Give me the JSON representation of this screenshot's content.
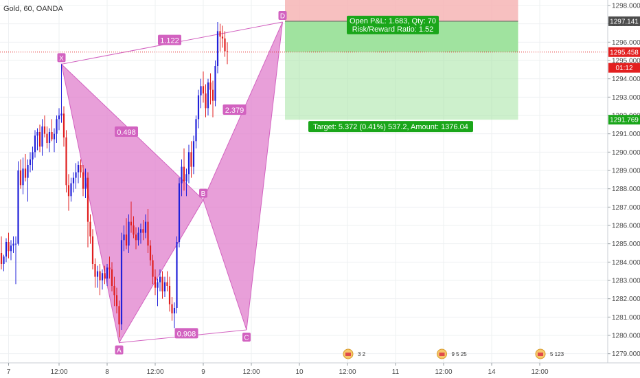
{
  "header": {
    "title": "Gold, 60, OANDA"
  },
  "colors": {
    "up": "#2121d9",
    "down": "#e01e1e",
    "pattern": "#d262c0",
    "pattern_fill": "#e07fcc",
    "target_zone": "#9be29a",
    "stop_zone": "#f5b0b0",
    "tag_green": "#1aa61a",
    "tag_dark": "#4d4d4d",
    "tag_red": "#e32020"
  },
  "chart_data": {
    "type": "candlestick",
    "title": "Gold, 60, OANDA",
    "ylim": [
      1278.5,
      1298.3
    ],
    "y_ticks": [
      1279.0,
      1280.0,
      1281.0,
      1282.0,
      1283.0,
      1284.0,
      1285.0,
      1286.0,
      1287.0,
      1288.0,
      1289.0,
      1290.0,
      1291.0,
      1292.0,
      1293.0,
      1294.0,
      1295.0,
      1296.0,
      1297.0,
      1298.0
    ],
    "y_tick_labels": [
      "1279.000",
      "1280.000",
      "1281.000",
      "1282.000",
      "1283.000",
      "1284.000",
      "1285.000",
      "1286.000",
      "1287.000",
      "1288.000",
      "1289.000",
      "1290.000",
      "1291.000",
      "1292.000",
      "1293.000",
      "1294.000",
      "1295.000",
      "1296.000",
      "1297.000",
      "1298.000"
    ],
    "x_ticks": [
      {
        "bar": 3,
        "label": "7"
      },
      {
        "bar": 24,
        "label": "12:00"
      },
      {
        "bar": 44,
        "label": "8"
      },
      {
        "bar": 64,
        "label": "12:00"
      },
      {
        "bar": 84,
        "label": "9"
      },
      {
        "bar": 104,
        "label": "12:00"
      },
      {
        "bar": 124,
        "label": "10"
      },
      {
        "bar": 144,
        "label": "12:00"
      },
      {
        "bar": 164,
        "label": "11"
      },
      {
        "bar": 184,
        "label": "12:00"
      },
      {
        "bar": 204,
        "label": "14"
      },
      {
        "bar": 224,
        "label": "12:00"
      }
    ],
    "candles": [
      [
        1284.5,
        1285.4,
        1283.6,
        1283.9
      ],
      [
        1283.9,
        1284.4,
        1283.5,
        1284.3
      ],
      [
        1284.3,
        1285.3,
        1284.0,
        1285.1
      ],
      [
        1285.1,
        1285.6,
        1284.2,
        1284.6
      ],
      [
        1284.6,
        1285.2,
        1284.1,
        1284.9
      ],
      [
        1284.9,
        1285.4,
        1284.5,
        1285.0
      ],
      [
        1285.0,
        1285.4,
        1282.8,
        1285.0
      ],
      [
        1285.0,
        1289.5,
        1284.9,
        1289.0
      ],
      [
        1289.0,
        1289.6,
        1288.0,
        1288.2
      ],
      [
        1288.2,
        1289.7,
        1287.7,
        1289.1
      ],
      [
        1289.1,
        1289.9,
        1288.4,
        1288.6
      ],
      [
        1288.6,
        1289.6,
        1287.3,
        1289.3
      ],
      [
        1289.3,
        1290.0,
        1288.9,
        1289.6
      ],
      [
        1289.6,
        1290.3,
        1289.0,
        1290.0
      ],
      [
        1290.0,
        1291.2,
        1289.7,
        1290.9
      ],
      [
        1290.9,
        1291.3,
        1290.1,
        1291.1
      ],
      [
        1291.1,
        1291.5,
        1290.0,
        1290.3
      ],
      [
        1290.3,
        1291.8,
        1289.8,
        1291.4
      ],
      [
        1291.4,
        1292.0,
        1290.8,
        1291.0
      ],
      [
        1291.0,
        1291.4,
        1290.2,
        1290.5
      ],
      [
        1290.5,
        1291.3,
        1290.0,
        1291.1
      ],
      [
        1291.1,
        1291.8,
        1290.6,
        1290.7
      ],
      [
        1290.7,
        1291.3,
        1290.0,
        1291.0
      ],
      [
        1291.0,
        1292.0,
        1290.5,
        1291.8
      ],
      [
        1291.8,
        1292.4,
        1291.2,
        1292.0
      ],
      [
        1292.0,
        1294.8,
        1291.6,
        1292.1
      ],
      [
        1292.1,
        1292.5,
        1290.3,
        1290.8
      ],
      [
        1290.8,
        1291.2,
        1287.8,
        1288.2
      ],
      [
        1288.2,
        1288.8,
        1286.8,
        1287.6
      ],
      [
        1287.6,
        1288.6,
        1287.3,
        1288.3
      ],
      [
        1288.3,
        1288.9,
        1287.8,
        1288.6
      ],
      [
        1288.6,
        1289.4,
        1288.0,
        1288.9
      ],
      [
        1288.9,
        1289.5,
        1288.3,
        1289.3
      ],
      [
        1289.3,
        1289.6,
        1288.6,
        1288.9
      ],
      [
        1288.9,
        1289.3,
        1287.6,
        1288.0
      ],
      [
        1288.0,
        1289.1,
        1287.5,
        1288.6
      ],
      [
        1288.6,
        1288.9,
        1284.8,
        1286.2
      ],
      [
        1286.2,
        1286.6,
        1285.0,
        1285.4
      ],
      [
        1285.4,
        1285.8,
        1283.6,
        1283.9
      ],
      [
        1283.9,
        1284.2,
        1282.6,
        1283.2
      ],
      [
        1283.2,
        1283.8,
        1282.6,
        1283.5
      ],
      [
        1283.5,
        1283.9,
        1282.2,
        1283.0
      ],
      [
        1283.0,
        1283.6,
        1282.5,
        1283.4
      ],
      [
        1283.4,
        1283.8,
        1282.8,
        1283.1
      ],
      [
        1283.1,
        1283.9,
        1282.7,
        1283.7
      ],
      [
        1283.7,
        1284.3,
        1283.1,
        1283.6
      ],
      [
        1283.6,
        1284.0,
        1282.4,
        1282.7
      ],
      [
        1282.7,
        1283.2,
        1281.6,
        1282.2
      ],
      [
        1282.2,
        1282.6,
        1281.2,
        1281.6
      ],
      [
        1281.6,
        1281.9,
        1279.9,
        1280.6
      ],
      [
        1280.6,
        1285.6,
        1280.3,
        1285.2
      ],
      [
        1285.2,
        1286.0,
        1284.6,
        1285.5
      ],
      [
        1285.5,
        1286.4,
        1284.7,
        1284.9
      ],
      [
        1284.9,
        1286.6,
        1284.5,
        1286.2
      ],
      [
        1286.2,
        1287.3,
        1285.6,
        1286.0
      ],
      [
        1286.0,
        1286.5,
        1285.3,
        1285.5
      ],
      [
        1285.5,
        1285.9,
        1284.7,
        1285.2
      ],
      [
        1285.2,
        1285.9,
        1284.9,
        1285.6
      ],
      [
        1285.6,
        1286.1,
        1285.0,
        1285.8
      ],
      [
        1285.8,
        1286.3,
        1285.2,
        1285.6
      ],
      [
        1285.6,
        1286.6,
        1285.3,
        1286.2
      ],
      [
        1286.2,
        1286.9,
        1284.5,
        1284.9
      ],
      [
        1284.9,
        1285.2,
        1283.8,
        1284.1
      ],
      [
        1284.1,
        1284.4,
        1282.8,
        1283.2
      ],
      [
        1283.2,
        1283.6,
        1282.2,
        1282.6
      ],
      [
        1282.6,
        1283.1,
        1281.6,
        1282.9
      ],
      [
        1282.9,
        1283.6,
        1282.4,
        1283.2
      ],
      [
        1283.2,
        1283.5,
        1282.0,
        1282.4
      ],
      [
        1282.4,
        1283.2,
        1282.1,
        1282.9
      ],
      [
        1282.9,
        1283.5,
        1282.4,
        1282.7
      ],
      [
        1282.7,
        1283.2,
        1281.3,
        1281.7
      ],
      [
        1281.7,
        1282.1,
        1280.8,
        1281.2
      ],
      [
        1281.2,
        1281.8,
        1280.4,
        1281.5
      ],
      [
        1281.5,
        1285.4,
        1281.2,
        1285.1
      ],
      [
        1285.1,
        1288.6,
        1284.8,
        1288.3
      ],
      [
        1288.3,
        1289.6,
        1287.6,
        1289.2
      ],
      [
        1289.2,
        1290.2,
        1287.9,
        1288.4
      ],
      [
        1288.4,
        1289.1,
        1287.6,
        1288.8
      ],
      [
        1288.8,
        1290.4,
        1288.3,
        1290.0
      ],
      [
        1290.0,
        1290.6,
        1288.6,
        1289.2
      ],
      [
        1289.2,
        1290.9,
        1288.8,
        1290.6
      ],
      [
        1290.6,
        1292.0,
        1290.2,
        1291.8
      ],
      [
        1291.8,
        1293.4,
        1291.3,
        1293.1
      ],
      [
        1293.1,
        1294.0,
        1292.4,
        1293.6
      ],
      [
        1293.6,
        1294.4,
        1292.7,
        1293.2
      ],
      [
        1293.2,
        1293.7,
        1291.9,
        1292.4
      ],
      [
        1292.4,
        1294.0,
        1292.0,
        1293.8
      ],
      [
        1293.8,
        1294.3,
        1292.6,
        1293.4
      ],
      [
        1293.4,
        1293.9,
        1291.9,
        1292.8
      ],
      [
        1292.8,
        1295.0,
        1292.5,
        1294.7
      ],
      [
        1294.7,
        1297.1,
        1294.3,
        1296.6
      ],
      [
        1296.6,
        1297.0,
        1295.5,
        1296.3
      ],
      [
        1296.3,
        1296.9,
        1295.7,
        1296.2
      ],
      [
        1296.2,
        1296.6,
        1295.2,
        1295.5
      ],
      [
        1295.5,
        1296.0,
        1294.8,
        1295.46
      ]
    ],
    "harmonic_points": [
      {
        "label": "X",
        "bar": 25,
        "price": 1294.8
      },
      {
        "label": "A",
        "bar": 49,
        "price": 1279.6
      },
      {
        "label": "B",
        "bar": 84,
        "price": 1287.4
      },
      {
        "label": "C",
        "bar": 102,
        "price": 1280.3
      },
      {
        "label": "D",
        "bar": 117,
        "price": 1297.1
      }
    ],
    "ratios": [
      {
        "label": "1.122",
        "x_bar": 70,
        "price": 1296.1
      },
      {
        "label": "0.498",
        "x_bar": 52,
        "price": 1291.1
      },
      {
        "label": "2.379",
        "x_bar": 97,
        "price": 1292.3
      },
      {
        "label": "0.908",
        "x_bar": 77,
        "price": 1280.1
      }
    ],
    "position": {
      "type": "short",
      "entry": 1297.141,
      "stop": 1298.3,
      "target": 1291.769,
      "start_bar": 118,
      "end_bar": 215,
      "pnl_label": "Open P&L: 1.683, Qty: 70",
      "rr_label": "Risk/Reward Ratio: 1.52",
      "target_label": "Target: 5.372 (0.41%) 537.2, Amount: 1376.04"
    },
    "current_price": 1295.458,
    "price_tags": [
      {
        "label": "1297.141",
        "price": 1297.141,
        "color": "#4d4d4d"
      },
      {
        "label": "1295.458",
        "price": 1295.458,
        "color": "#e32020"
      },
      {
        "label": "01:12",
        "price": 1294.6,
        "color": "#e32020"
      },
      {
        "label": "1291.769",
        "price": 1291.769,
        "color": "#1aa61a"
      }
    ],
    "event_badges": [
      {
        "bar": 146,
        "label": "3 2"
      },
      {
        "bar": 185,
        "label": "9 5 25"
      },
      {
        "bar": 226,
        "label": "5 123"
      }
    ]
  }
}
